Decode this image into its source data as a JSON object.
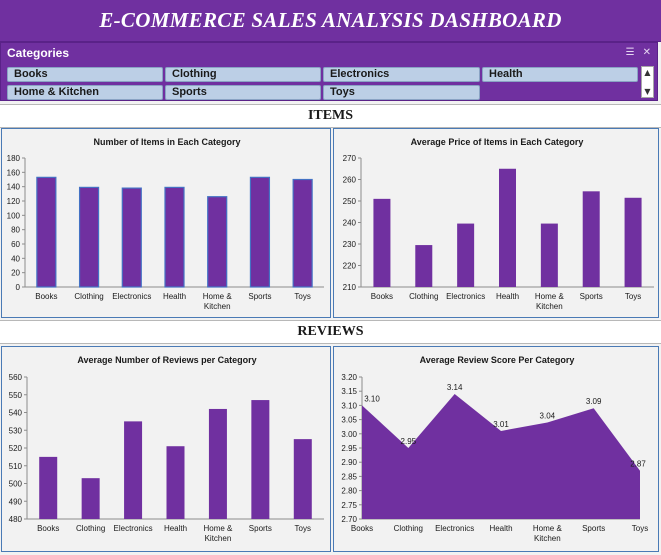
{
  "dashboard": {
    "title": "E-COMMERCE SALES ANALYSIS DASHBOARD"
  },
  "slicer": {
    "header": "Categories",
    "multiselect_icon": "multi-select-icon",
    "clear_filter_icon": "clear-filter-icon",
    "items": [
      "Books",
      "Clothing",
      "Electronics",
      "Health",
      "Home & Kitchen",
      "Sports",
      "Toys"
    ]
  },
  "sections": {
    "items": "ITEMS",
    "reviews": "REVIEWS"
  },
  "colors": {
    "purple": "#7030a0",
    "bar_outline": "#4472c4",
    "panel_border": "#4a7ab5",
    "slicer_item": "#bccfe6"
  },
  "chart_data": [
    {
      "type": "bar",
      "title": "Number of Items in Each Category",
      "categories": [
        "Books",
        "Clothing",
        "Electronics",
        "Health",
        "Home & Kitchen",
        "Sports",
        "Toys"
      ],
      "values": [
        153,
        139,
        138,
        139,
        126,
        153,
        150
      ],
      "ylim": [
        0,
        180
      ],
      "yticks": [
        0,
        20,
        40,
        60,
        80,
        100,
        120,
        140,
        160,
        180
      ],
      "grid": false
    },
    {
      "type": "bar",
      "title": "Average Price of Items in Each Category",
      "categories": [
        "Books",
        "Clothing",
        "Electronics",
        "Health",
        "Home & Kitchen",
        "Sports",
        "Toys"
      ],
      "values": [
        251,
        229.5,
        239.5,
        265,
        239.5,
        254.5,
        251.5
      ],
      "ylim": [
        210,
        270
      ],
      "yticks": [
        210,
        220,
        230,
        240,
        250,
        260,
        270
      ],
      "grid": false
    },
    {
      "type": "bar",
      "title": "Average Number of Reviews per Category",
      "categories": [
        "Books",
        "Clothing",
        "Electronics",
        "Health",
        "Home & Kitchen",
        "Sports",
        "Toys"
      ],
      "values": [
        515,
        503,
        535,
        521,
        542,
        547,
        525
      ],
      "ylim": [
        480,
        560
      ],
      "yticks": [
        480,
        490,
        500,
        510,
        520,
        530,
        540,
        550,
        560
      ],
      "grid": false
    },
    {
      "type": "area",
      "title": "Average Review Score Per Category",
      "categories": [
        "Books",
        "Clothing",
        "Electronics",
        "Health",
        "Home & Kitchen",
        "Sports",
        "Toys"
      ],
      "values": [
        3.1,
        2.95,
        3.14,
        3.01,
        3.04,
        3.09,
        2.87
      ],
      "data_labels": [
        "3.10",
        "2.95",
        "3.14",
        "3.01",
        "3.04",
        "3.09",
        "2.87"
      ],
      "ylim": [
        2.7,
        3.2
      ],
      "yticks": [
        "2.70",
        "2.75",
        "2.80",
        "2.85",
        "2.90",
        "2.95",
        "3.00",
        "3.05",
        "3.10",
        "3.15",
        "3.20"
      ],
      "grid": false
    }
  ]
}
